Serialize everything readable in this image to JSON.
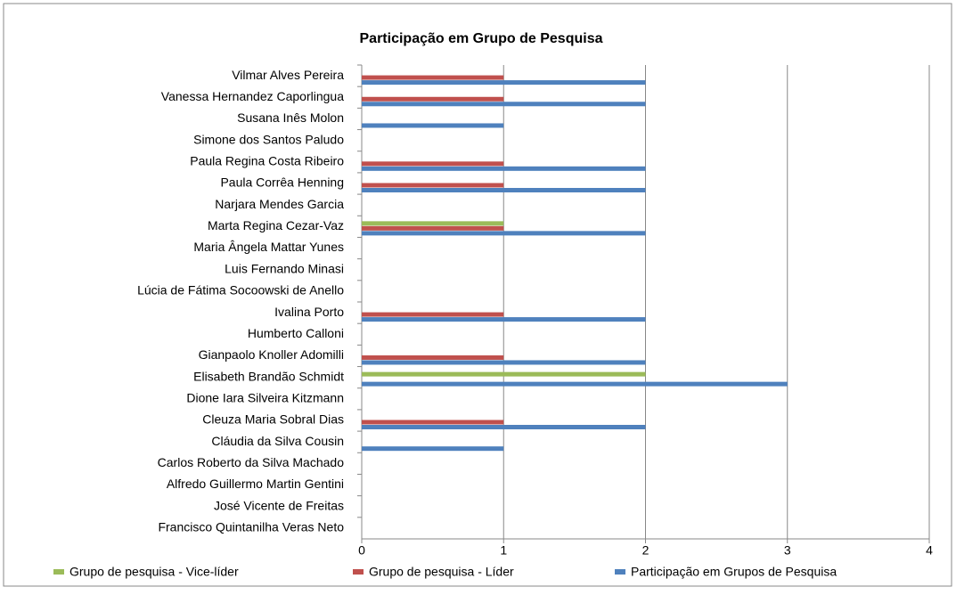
{
  "chart_data": {
    "type": "bar",
    "orientation": "horizontal",
    "title": "Participação em Grupo de Pesquisa",
    "categories": [
      "Vilmar Alves Pereira",
      "Vanessa Hernandez Caporlingua",
      "Susana Inês Molon",
      "Simone dos Santos Paludo",
      "Paula Regina Costa Ribeiro",
      "Paula Corrêa Henning",
      "Narjara Mendes Garcia",
      "Marta Regina Cezar-Vaz",
      "Maria Ângela Mattar Yunes",
      "Luis Fernando Minasi",
      "Lúcia de Fátima Socoowski de Anello",
      "Ivalina Porto",
      "Humberto Calloni",
      "Gianpaolo Knoller Adomilli",
      "Elisabeth Brandão Schmidt",
      "Dione Iara Silveira Kitzmann",
      "Cleuza Maria Sobral Dias",
      "Cláudia da Silva Cousin",
      "Carlos Roberto da Silva Machado",
      "Alfredo Guillermo Martin Gentini",
      "José Vicente de Freitas",
      "Francisco Quintanilha Veras Neto"
    ],
    "series": [
      {
        "name": "Grupo de pesquisa - Vice-líder",
        "color": "#9bbb59",
        "values": [
          0,
          0,
          0,
          0,
          0,
          0,
          0,
          1,
          0,
          0,
          0,
          0,
          0,
          0,
          2,
          0,
          0,
          0,
          0,
          0,
          0,
          0
        ]
      },
      {
        "name": "Grupo de pesquisa - Líder",
        "color": "#c0504d",
        "values": [
          1,
          1,
          0,
          0,
          1,
          1,
          0,
          1,
          0,
          0,
          0,
          1,
          0,
          1,
          0,
          0,
          1,
          0,
          0,
          0,
          0,
          0
        ]
      },
      {
        "name": "Participação em Grupos de Pesquisa",
        "color": "#4f81bd",
        "values": [
          2,
          2,
          1,
          0,
          2,
          2,
          0,
          2,
          0,
          0,
          0,
          2,
          0,
          2,
          3,
          0,
          2,
          1,
          0,
          0,
          0,
          0
        ]
      }
    ],
    "xlim": [
      0,
      4
    ],
    "xticks": [
      0,
      1,
      2,
      3,
      4
    ],
    "grid": true,
    "legend": "bottom"
  }
}
